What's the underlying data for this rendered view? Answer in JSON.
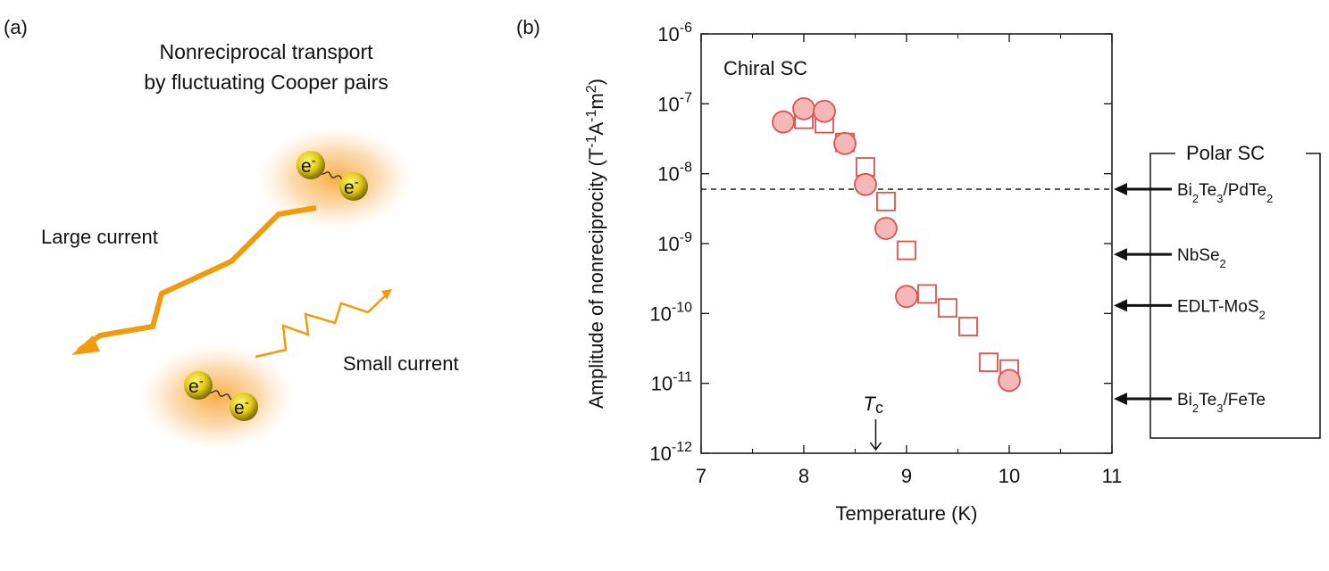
{
  "panel_a": {
    "label": "(a)",
    "title_line1": "Nonreciprocal transport",
    "title_line2": "by fluctuating Cooper pairs",
    "large_current": "Large current",
    "small_current": "Small current",
    "electron_symbol": "e",
    "electron_charge": "-",
    "colors": {
      "arrow": "#f39a0b",
      "glow": "#f7b24a",
      "electron": "#e6d21c"
    }
  },
  "panel_b": {
    "label": "(b)",
    "annotation": "Chiral SC",
    "tc_label_main": "T",
    "tc_label_sub": "c",
    "polar_box_title": "Polar SC",
    "polar_refs": [
      {
        "parts": [
          [
            "Bi",
            ""
          ],
          [
            "2",
            "sub"
          ],
          [
            "Te",
            ""
          ],
          [
            "3",
            "sub"
          ],
          [
            "/PdTe",
            ""
          ],
          [
            "2",
            "sub"
          ]
        ],
        "value": 6e-09
      },
      {
        "parts": [
          [
            "NbSe",
            ""
          ],
          [
            "2",
            "sub"
          ]
        ],
        "value": 7e-10
      },
      {
        "parts": [
          [
            "EDLT-MoS",
            ""
          ],
          [
            "2",
            "sub"
          ]
        ],
        "value": 1.3e-10
      },
      {
        "parts": [
          [
            "Bi",
            ""
          ],
          [
            "2",
            "sub"
          ],
          [
            "Te",
            ""
          ],
          [
            "3",
            "sub"
          ],
          [
            "/FeTe",
            ""
          ]
        ],
        "value": 6e-12
      }
    ]
  },
  "chart_data": {
    "type": "scatter",
    "title": "",
    "xlabel": "Temperature (K)",
    "ylabel_prefix": "Amplitude of  nonreciprocity  (T",
    "ylabel_parts": [
      [
        "Amplitude of  nonreciprocity  (T",
        ""
      ],
      [
        "-1",
        "sup"
      ],
      [
        "A",
        ""
      ],
      [
        "-1",
        "sup"
      ],
      [
        "m",
        ""
      ],
      [
        "2",
        "sup"
      ],
      [
        ")",
        ""
      ]
    ],
    "xlim": [
      7,
      11
    ],
    "ylim_log10": [
      -12,
      -6
    ],
    "xticks": [
      "7",
      "8",
      "9",
      "10",
      "11"
    ],
    "yticks_exp": [
      "-12",
      "-11",
      "-10",
      "-9",
      "-8",
      "-7",
      "-6"
    ],
    "tick_base": "10",
    "tc_value": 8.7,
    "reference_line": 6e-09,
    "series": [
      {
        "name": "circles",
        "marker": "circle-filled",
        "color": "#e0504a",
        "fill": "#f5b8b8",
        "points": [
          [
            7.8,
            5.5e-08
          ],
          [
            8.0,
            8.5e-08
          ],
          [
            8.2,
            7.8e-08
          ],
          [
            8.4,
            2.7e-08
          ],
          [
            8.6,
            7e-09
          ],
          [
            8.8,
            1.65e-09
          ],
          [
            9.0,
            1.75e-10
          ],
          [
            10.0,
            1.1e-11
          ]
        ]
      },
      {
        "name": "squares",
        "marker": "square-open",
        "color": "#e0504a",
        "points": [
          [
            8.0,
            6e-08
          ],
          [
            8.2,
            5.2e-08
          ],
          [
            8.4,
            2.8e-08
          ],
          [
            8.6,
            1.25e-08
          ],
          [
            8.8,
            4e-09
          ],
          [
            9.0,
            8e-10
          ],
          [
            9.2,
            1.9e-10
          ],
          [
            9.4,
            1.2e-10
          ],
          [
            9.6,
            6.5e-11
          ],
          [
            9.8,
            2e-11
          ],
          [
            10.0,
            1.6e-11
          ]
        ]
      }
    ]
  }
}
